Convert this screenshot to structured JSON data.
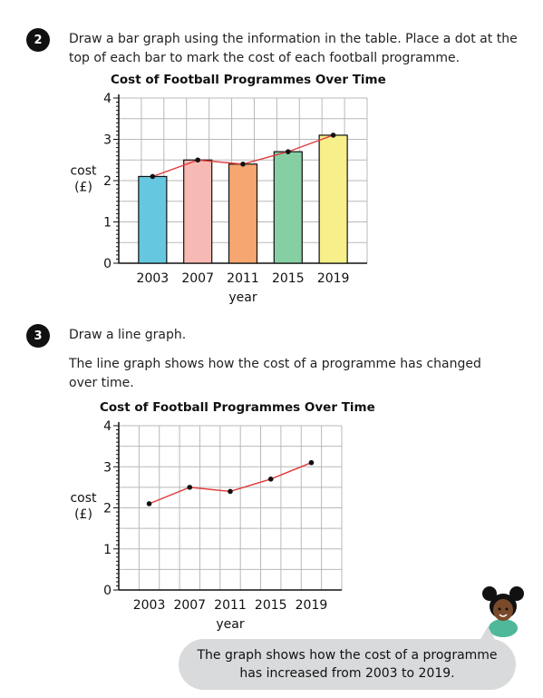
{
  "question2": {
    "number": "2",
    "text_line1": "Draw a bar graph using the information in the table. Place a dot at the",
    "text_line2": "top of each bar to mark the cost of each football programme."
  },
  "question3": {
    "number": "3",
    "instruction": "Draw a line graph.",
    "text_line1": "The line graph shows how the cost of a programme has changed",
    "text_line2": "over time."
  },
  "speech_bubble": {
    "line1": "The graph shows how the cost of a programme",
    "line2": "has increased from 2003 to 2019."
  },
  "colors": {
    "line": "#e03a3a",
    "bar_2003": "#65c8e0",
    "bar_2007": "#f7b9b3",
    "bar_2011": "#f6a671",
    "bar_2015": "#86cfa3",
    "bar_2019": "#f7ef8a",
    "grid": "#b9b9b9"
  },
  "chart_data": [
    {
      "type": "bar",
      "title": "Cost of Football Programmes Over Time",
      "xlabel": "year",
      "ylabel": "cost (£)",
      "ylabel_line1": "cost",
      "ylabel_line2": "(£)",
      "categories": [
        "2003",
        "2007",
        "2011",
        "2015",
        "2019"
      ],
      "values": [
        2.1,
        2.5,
        2.4,
        2.7,
        3.1
      ],
      "yticks": [
        "0",
        "1",
        "2",
        "3",
        "4"
      ],
      "ylim": [
        0,
        4
      ],
      "grid": true,
      "dots_on_bars": true,
      "line_through_dots": true
    },
    {
      "type": "line",
      "title": "Cost of Football Programmes Over Time",
      "xlabel": "year",
      "ylabel": "cost (£)",
      "ylabel_line1": "cost",
      "ylabel_line2": "(£)",
      "categories": [
        "2003",
        "2007",
        "2011",
        "2015",
        "2019"
      ],
      "values": [
        2.1,
        2.5,
        2.4,
        2.7,
        3.1
      ],
      "yticks": [
        "0",
        "1",
        "2",
        "3",
        "4"
      ],
      "ylim": [
        0,
        4
      ],
      "grid": true
    }
  ]
}
